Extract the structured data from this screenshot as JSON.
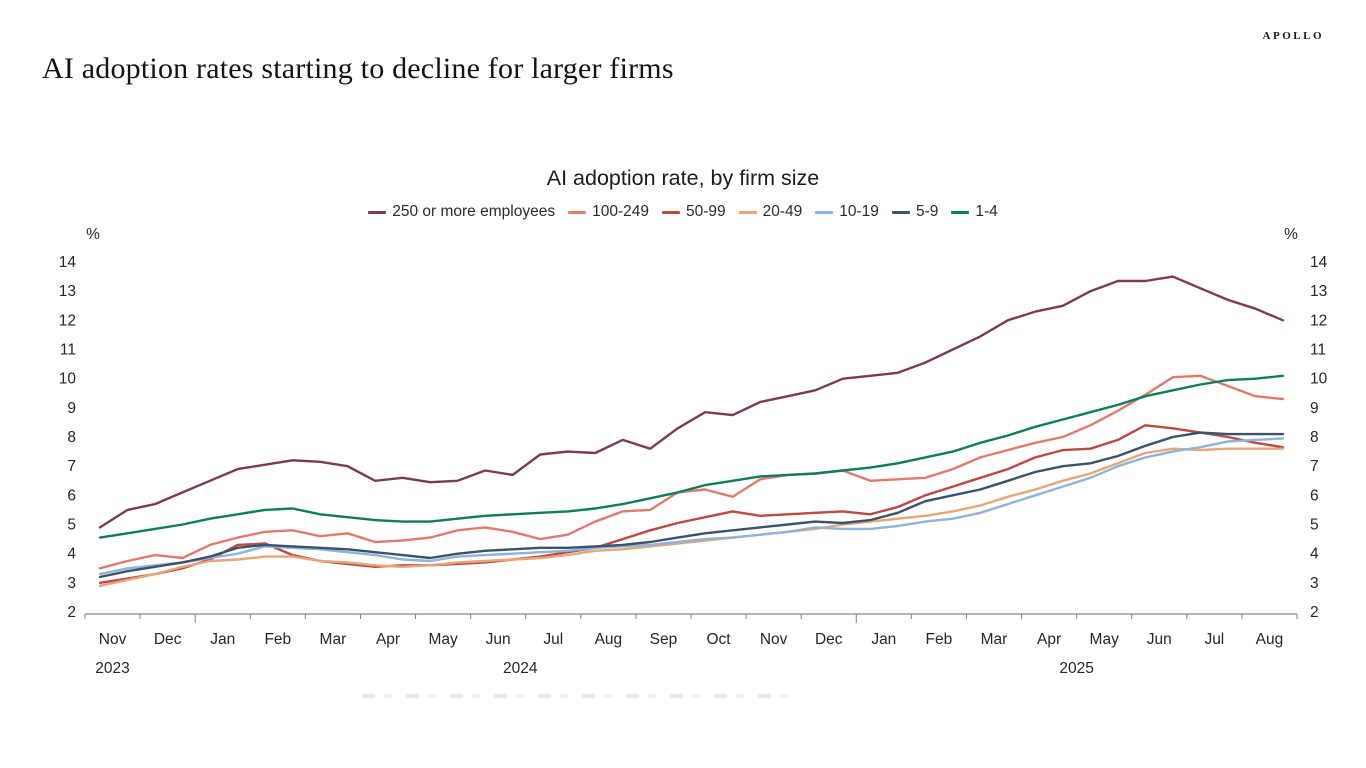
{
  "brand": {
    "logo": "APOLLO"
  },
  "page_title": "AI adoption rates starting to decline for larger firms",
  "chart_data": {
    "type": "line",
    "title": "AI adoption rate, by firm size",
    "y_unit": "%",
    "ylim": [
      2,
      14
    ],
    "yticks": [
      2,
      3,
      4,
      5,
      6,
      7,
      8,
      9,
      10,
      11,
      12,
      13,
      14
    ],
    "grid": false,
    "legend_position": "top",
    "x_frequency": "biweekly",
    "x_months": [
      "Nov",
      "Dec",
      "Jan",
      "Feb",
      "Mar",
      "Apr",
      "May",
      "Jun",
      "Jul",
      "Aug",
      "Sep",
      "Oct",
      "Nov",
      "Dec",
      "Jan",
      "Feb",
      "Mar",
      "Apr",
      "May",
      "Jun",
      "Jul",
      "Aug"
    ],
    "x_years": [
      {
        "label": "2023",
        "slot": 0
      },
      {
        "label": "2024",
        "slot": 7.4
      },
      {
        "label": "2025",
        "slot": 17.5
      }
    ],
    "series": [
      {
        "name": "250 or more employees",
        "color": "#7d3c4c",
        "values": [
          4.9,
          5.5,
          5.7,
          6.1,
          6.5,
          6.9,
          7.05,
          7.2,
          7.15,
          7.0,
          6.5,
          6.6,
          6.45,
          6.5,
          6.85,
          6.7,
          7.4,
          7.5,
          7.45,
          7.9,
          7.6,
          8.3,
          8.85,
          8.75,
          9.2,
          9.4,
          9.6,
          10.0,
          10.1,
          10.2,
          10.55,
          11.0,
          11.45,
          12.0,
          12.3,
          12.5,
          13.0,
          13.35,
          13.35,
          13.5,
          13.1,
          12.7,
          12.4,
          12.0
        ]
      },
      {
        "name": "100-249",
        "color": "#e07b6c",
        "values": [
          3.5,
          3.75,
          3.95,
          3.85,
          4.3,
          4.55,
          4.75,
          4.8,
          4.6,
          4.7,
          4.4,
          4.45,
          4.55,
          4.8,
          4.9,
          4.75,
          4.5,
          4.65,
          5.1,
          5.45,
          5.5,
          6.1,
          6.2,
          5.95,
          6.55,
          6.7,
          6.75,
          6.85,
          6.5,
          6.55,
          6.6,
          6.9,
          7.3,
          7.55,
          7.8,
          8.0,
          8.4,
          8.9,
          9.45,
          10.05,
          10.1,
          9.75,
          9.4,
          9.3
        ]
      },
      {
        "name": "50-99",
        "color": "#bc4a42",
        "values": [
          3.0,
          3.15,
          3.3,
          3.5,
          3.8,
          4.3,
          4.35,
          3.95,
          3.75,
          3.65,
          3.55,
          3.6,
          3.6,
          3.65,
          3.7,
          3.8,
          3.9,
          4.05,
          4.2,
          4.5,
          4.8,
          5.05,
          5.25,
          5.45,
          5.3,
          5.35,
          5.4,
          5.45,
          5.35,
          5.6,
          6.0,
          6.3,
          6.6,
          6.9,
          7.3,
          7.55,
          7.6,
          7.9,
          8.4,
          8.3,
          8.15,
          8.0,
          7.8,
          7.65
        ]
      },
      {
        "name": "20-49",
        "color": "#e6a678",
        "values": [
          2.9,
          3.1,
          3.3,
          3.55,
          3.75,
          3.8,
          3.9,
          3.9,
          3.75,
          3.7,
          3.6,
          3.55,
          3.6,
          3.7,
          3.75,
          3.8,
          3.85,
          3.95,
          4.1,
          4.15,
          4.25,
          4.35,
          4.45,
          4.55,
          4.65,
          4.75,
          4.85,
          5.0,
          5.1,
          5.2,
          5.3,
          5.45,
          5.65,
          5.95,
          6.2,
          6.5,
          6.75,
          7.1,
          7.45,
          7.6,
          7.55,
          7.6,
          7.6,
          7.6
        ]
      },
      {
        "name": "10-19",
        "color": "#8fb3d9",
        "values": [
          3.3,
          3.5,
          3.6,
          3.7,
          3.85,
          4.0,
          4.25,
          4.2,
          4.15,
          4.05,
          3.95,
          3.8,
          3.75,
          3.9,
          3.95,
          4.0,
          4.05,
          4.1,
          4.2,
          4.25,
          4.3,
          4.4,
          4.5,
          4.55,
          4.65,
          4.75,
          4.9,
          4.85,
          4.85,
          4.95,
          5.1,
          5.2,
          5.4,
          5.7,
          6.0,
          6.3,
          6.6,
          7.0,
          7.3,
          7.5,
          7.65,
          7.85,
          7.9,
          7.95
        ]
      },
      {
        "name": "5-9",
        "color": "#3a536b",
        "values": [
          3.2,
          3.4,
          3.55,
          3.7,
          3.9,
          4.2,
          4.3,
          4.25,
          4.2,
          4.15,
          4.05,
          3.95,
          3.85,
          4.0,
          4.1,
          4.15,
          4.2,
          4.2,
          4.25,
          4.3,
          4.4,
          4.55,
          4.7,
          4.8,
          4.9,
          5.0,
          5.1,
          5.05,
          5.15,
          5.4,
          5.8,
          6.0,
          6.2,
          6.5,
          6.8,
          7.0,
          7.1,
          7.35,
          7.7,
          8.0,
          8.15,
          8.1,
          8.1,
          8.1
        ]
      },
      {
        "name": "1-4",
        "color": "#0e7d5e",
        "values": [
          4.55,
          4.7,
          4.85,
          5.0,
          5.2,
          5.35,
          5.5,
          5.55,
          5.35,
          5.25,
          5.15,
          5.1,
          5.1,
          5.2,
          5.3,
          5.35,
          5.4,
          5.45,
          5.55,
          5.7,
          5.9,
          6.1,
          6.35,
          6.5,
          6.65,
          6.7,
          6.75,
          6.85,
          6.95,
          7.1,
          7.3,
          7.5,
          7.8,
          8.05,
          8.35,
          8.6,
          8.85,
          9.1,
          9.4,
          9.6,
          9.8,
          9.95,
          10.0,
          10.1
        ]
      }
    ]
  }
}
